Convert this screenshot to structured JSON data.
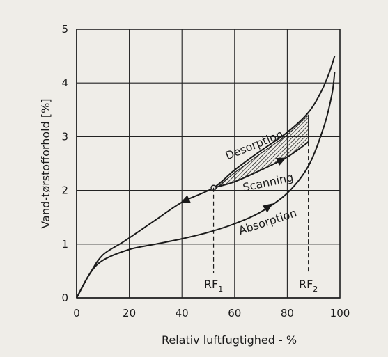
{
  "chart_data": {
    "type": "line",
    "title": "",
    "xlabel": "Relativ luftfugtighed - %",
    "ylabel": "Vand-tørstofforhold [%]",
    "xlim": [
      0,
      100
    ],
    "ylim": [
      0,
      5
    ],
    "x_ticks": [
      0,
      20,
      40,
      60,
      80,
      100
    ],
    "y_ticks": [
      0,
      1,
      2,
      3,
      4,
      5
    ],
    "grid": true,
    "series": [
      {
        "name": "Desorption",
        "x": [
          0,
          5,
          10,
          18,
          30,
          40,
          52,
          60,
          70,
          80,
          88,
          93,
          96,
          98
        ],
        "y": [
          0,
          0.45,
          0.8,
          1.05,
          1.45,
          1.78,
          2.05,
          2.38,
          2.74,
          3.08,
          3.45,
          3.85,
          4.2,
          4.5
        ]
      },
      {
        "name": "Absorption",
        "x": [
          0,
          5,
          10,
          20,
          30,
          40,
          50,
          60,
          70,
          80,
          88,
          94,
          97,
          98
        ],
        "y": [
          0,
          0.45,
          0.7,
          0.9,
          1.0,
          1.1,
          1.22,
          1.38,
          1.6,
          1.95,
          2.45,
          3.2,
          3.8,
          4.2
        ]
      },
      {
        "name": "Scanning",
        "x": [
          52,
          60,
          70,
          80,
          88
        ],
        "y": [
          2.05,
          2.16,
          2.38,
          2.62,
          2.9
        ]
      }
    ],
    "annotations": [
      {
        "text": "Desorption",
        "x": 68,
        "y": 2.78
      },
      {
        "text": "Scanning",
        "x": 73,
        "y": 2.08
      },
      {
        "text": "Absorption",
        "x": 73,
        "y": 1.35
      },
      {
        "text": "RF",
        "sub": "1",
        "x": 52
      },
      {
        "text": "RF",
        "sub": "2",
        "x": 88
      }
    ]
  }
}
